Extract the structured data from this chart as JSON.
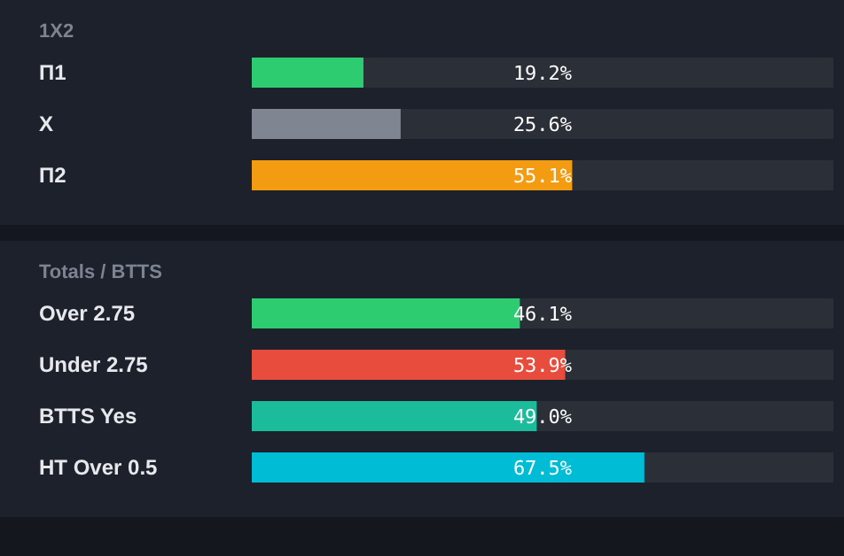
{
  "chart_data": [
    {
      "type": "bar",
      "title": "1X2",
      "orientation": "horizontal",
      "categories": [
        "П1",
        "X",
        "П2"
      ],
      "values": [
        19.2,
        25.6,
        55.1
      ],
      "colors": [
        "#2ecc71",
        "#7f8591",
        "#f39c12"
      ],
      "value_labels": [
        "19.2%",
        "25.6%",
        "55.1%"
      ],
      "xlim": [
        0,
        100
      ],
      "tick_labels": "y"
    },
    {
      "type": "bar",
      "title": "Totals / BTTS",
      "orientation": "horizontal",
      "categories": [
        "Over 2.75",
        "Under 2.75",
        "BTTS Yes",
        "HT Over 0.5"
      ],
      "values": [
        46.1,
        53.9,
        49.0,
        67.5
      ],
      "colors": [
        "#2ecc71",
        "#e74c3c",
        "#1abc9c",
        "#00bcd4"
      ],
      "value_labels": [
        "46.1%",
        "53.9%",
        "49.0%",
        "67.5%"
      ],
      "xlim": [
        0,
        100
      ],
      "tick_labels": "y"
    }
  ]
}
